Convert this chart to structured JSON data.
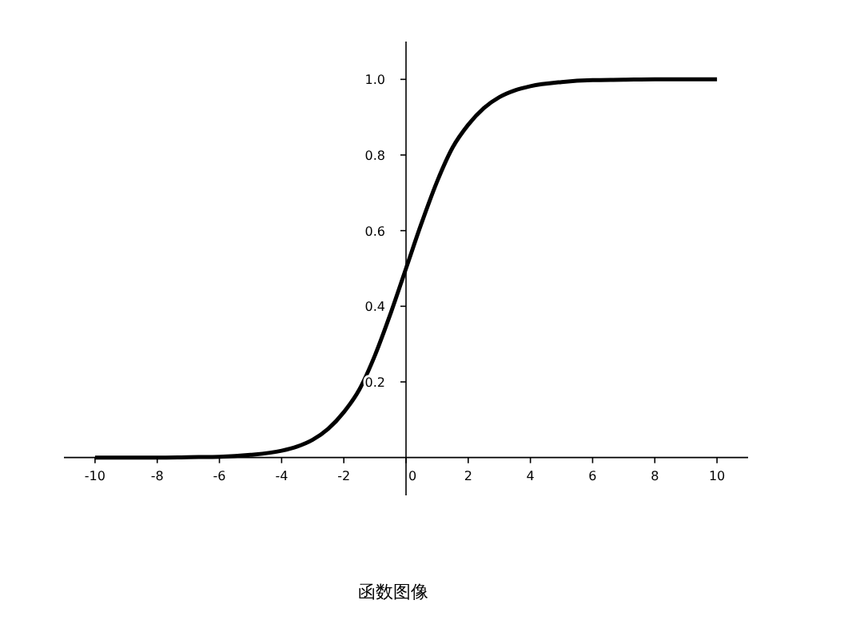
{
  "chart_data": {
    "type": "line",
    "xlabel": "函数图像",
    "x": [
      -10,
      -9,
      -8,
      -7,
      -6,
      -5,
      -4,
      -3.5,
      -3,
      -2.5,
      -2,
      -1.5,
      -1,
      -0.5,
      0,
      0.5,
      1,
      1.5,
      2,
      2.5,
      3,
      3.5,
      4,
      5,
      6,
      7,
      8,
      9,
      10
    ],
    "series": [
      {
        "color": "#000000",
        "values": [
          0,
          0,
          0,
          0.001,
          0.002,
          0.007,
          0.018,
          0.029,
          0.047,
          0.076,
          0.12,
          0.18,
          0.27,
          0.38,
          0.5,
          0.62,
          0.73,
          0.82,
          0.88,
          0.924,
          0.953,
          0.971,
          0.982,
          0.993,
          0.998,
          0.999,
          1,
          1,
          1
        ]
      }
    ],
    "xlim": [
      -11,
      11
    ],
    "ylim": [
      -0.1,
      1.1
    ],
    "xticks": [
      -10,
      -8,
      -6,
      -4,
      -2,
      0,
      2,
      4,
      6,
      8,
      10
    ],
    "yticks": [
      {
        "value": 0.2,
        "label": "0.2"
      },
      {
        "value": 0.4,
        "label": "0.4"
      },
      {
        "value": 0.6,
        "label": "0.6"
      },
      {
        "value": 0.8,
        "label": "0.8"
      },
      {
        "value": 1,
        "label": "1.0"
      }
    ],
    "grid": false,
    "marker": "none",
    "line_style": "solid"
  }
}
